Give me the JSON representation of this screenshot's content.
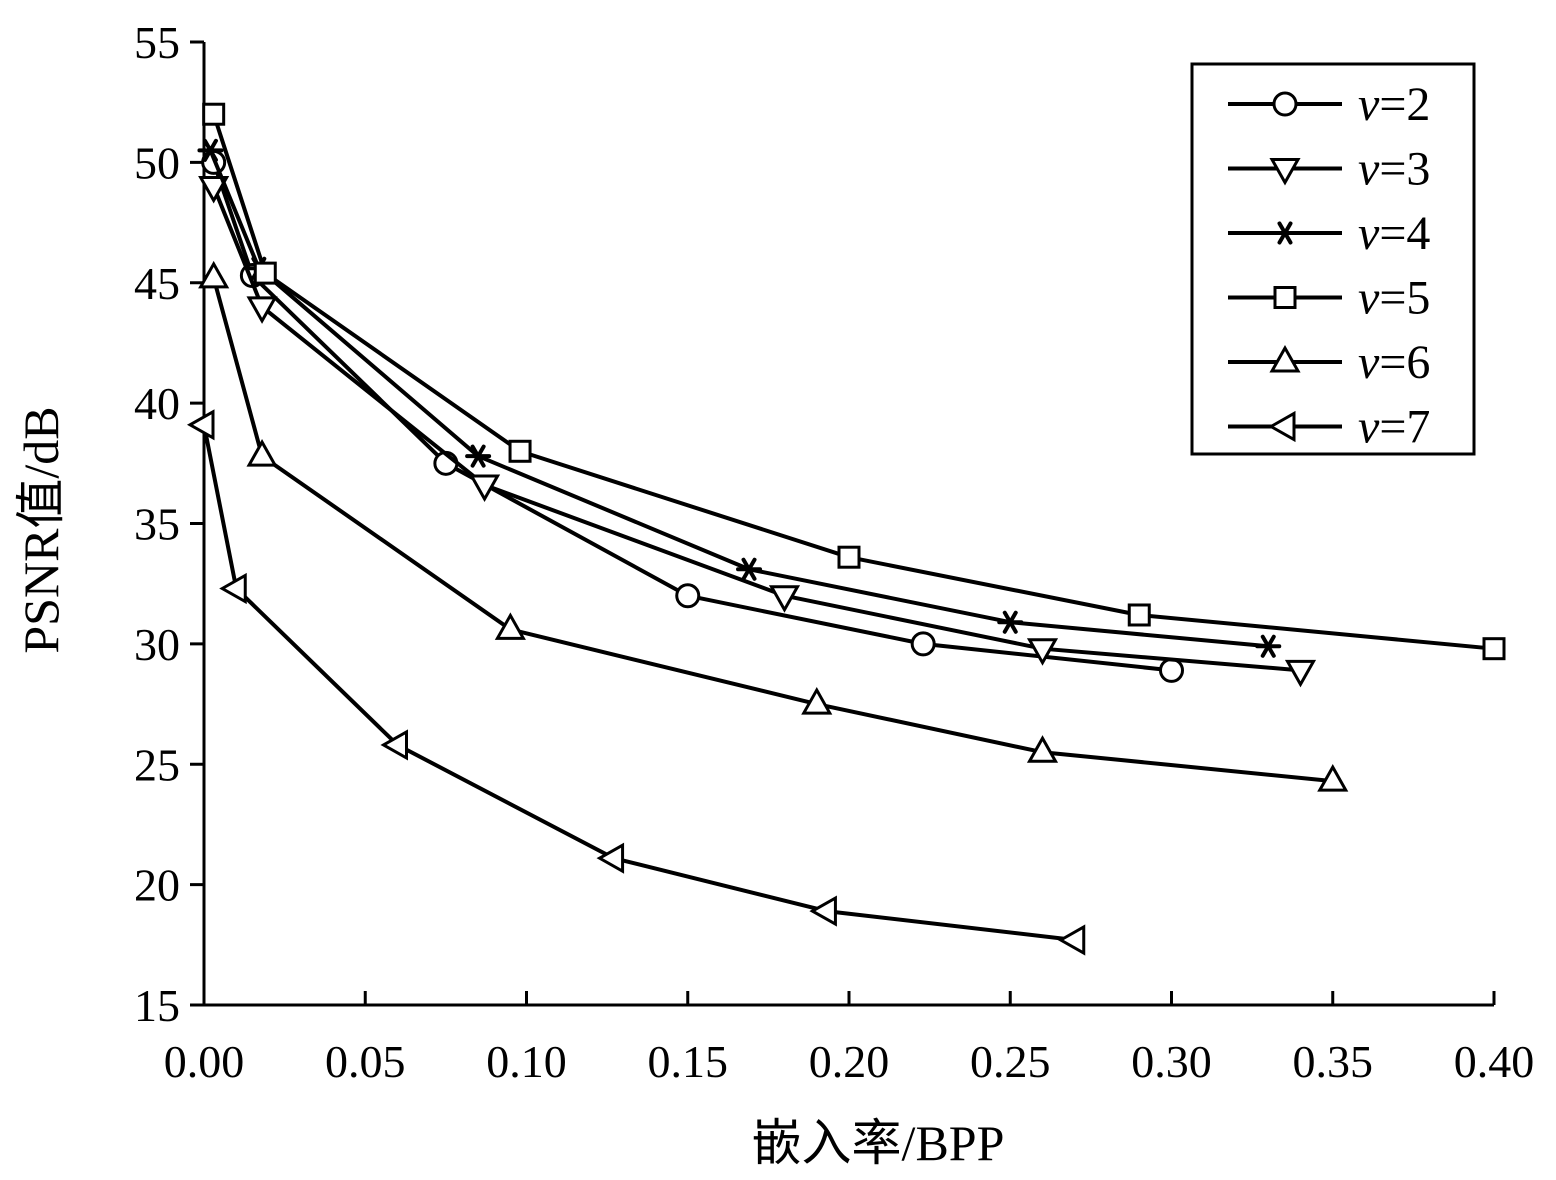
{
  "chart_data": {
    "type": "line",
    "xlabel": "嵌入率/BPP",
    "ylabel": "PSNR值/dB",
    "xlim": [
      0,
      0.4
    ],
    "ylim": [
      15,
      55
    ],
    "xticks": [
      "0.00",
      "0.05",
      "0.10",
      "0.15",
      "0.20",
      "0.25",
      "0.30",
      "0.35",
      "0.40"
    ],
    "yticks": [
      "15",
      "20",
      "25",
      "30",
      "35",
      "40",
      "45",
      "50",
      "55"
    ],
    "grid": false,
    "legend_position": "top-right",
    "series": [
      {
        "name": "v=2",
        "var": "v",
        "eq": "=2",
        "marker": "circle",
        "x": [
          0.003,
          0.015,
          0.075,
          0.15,
          0.223,
          0.3
        ],
        "y": [
          50.0,
          45.3,
          37.5,
          32.0,
          30.0,
          28.9
        ]
      },
      {
        "name": "v=3",
        "var": "v",
        "eq": "=3",
        "marker": "triangle-down",
        "x": [
          0.003,
          0.018,
          0.087,
          0.18,
          0.26,
          0.34
        ],
        "y": [
          49.0,
          44.0,
          36.6,
          32.0,
          29.8,
          28.9
        ]
      },
      {
        "name": "v=4",
        "var": "v",
        "eq": "=4",
        "marker": "asterisk",
        "x": [
          0.002,
          0.017,
          0.085,
          0.169,
          0.25,
          0.33
        ],
        "y": [
          50.5,
          45.6,
          37.8,
          33.1,
          30.9,
          29.9
        ]
      },
      {
        "name": "v=5",
        "var": "v",
        "eq": "=5",
        "marker": "square",
        "x": [
          0.003,
          0.019,
          0.098,
          0.2,
          0.29,
          0.4
        ],
        "y": [
          52.0,
          45.4,
          38.0,
          33.6,
          31.2,
          29.8
        ]
      },
      {
        "name": "v=6",
        "var": "v",
        "eq": "=6",
        "marker": "triangle-up",
        "x": [
          0.003,
          0.018,
          0.095,
          0.19,
          0.26,
          0.35
        ],
        "y": [
          45.2,
          37.8,
          30.6,
          27.5,
          25.5,
          24.3
        ]
      },
      {
        "name": "v=7",
        "var": "v",
        "eq": "=7",
        "marker": "triangle-left",
        "x": [
          0.0,
          0.01,
          0.06,
          0.127,
          0.193,
          0.27
        ],
        "y": [
          39.1,
          32.3,
          25.8,
          21.1,
          18.9,
          17.7
        ]
      }
    ]
  }
}
